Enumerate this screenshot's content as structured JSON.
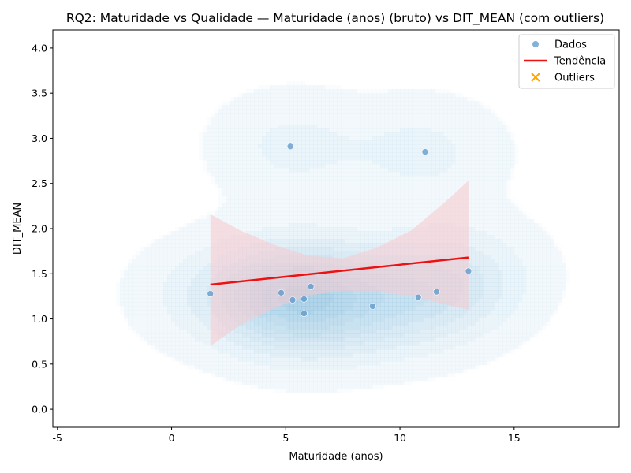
{
  "chart_data": {
    "type": "scatter",
    "title": "RQ2: Maturidade vs Qualidade — Maturidade (anos) (bruto) vs DIT_MEAN (com outliers)",
    "xlabel": "Maturidade (anos)",
    "ylabel": "DIT_MEAN",
    "xlim": [
      -5.2,
      19.6
    ],
    "ylim": [
      -0.2,
      4.2
    ],
    "xticks": [
      -5,
      0,
      5,
      10,
      15
    ],
    "yticks": [
      0.0,
      0.5,
      1.0,
      1.5,
      2.0,
      2.5,
      3.0,
      3.5,
      4.0
    ],
    "grid": false,
    "legend_position": "top-right",
    "legend": [
      {
        "label": "Dados",
        "marker": "dot",
        "color": "#5b97c9"
      },
      {
        "label": "Tendência",
        "marker": "line",
        "color": "#ee1111"
      },
      {
        "label": "Outliers",
        "marker": "x",
        "color": "#ffa500"
      }
    ],
    "points": [
      {
        "x": 1.7,
        "y": 1.28
      },
      {
        "x": 4.8,
        "y": 1.29
      },
      {
        "x": 5.3,
        "y": 1.21
      },
      {
        "x": 5.8,
        "y": 1.22
      },
      {
        "x": 5.8,
        "y": 1.06
      },
      {
        "x": 6.1,
        "y": 1.36
      },
      {
        "x": 8.8,
        "y": 1.14
      },
      {
        "x": 10.8,
        "y": 1.24
      },
      {
        "x": 11.6,
        "y": 1.3
      },
      {
        "x": 13.0,
        "y": 1.53
      },
      {
        "x": 5.2,
        "y": 2.91
      },
      {
        "x": 11.1,
        "y": 2.85
      }
    ],
    "outliers": [],
    "trend": {
      "x": [
        1.7,
        13.0
      ],
      "y": [
        1.38,
        1.68
      ]
    },
    "confidence_band": {
      "x": [
        1.7,
        3.0,
        4.5,
        6.0,
        7.5,
        9.0,
        10.5,
        12.0,
        13.0
      ],
      "upper": [
        2.16,
        1.98,
        1.82,
        1.7,
        1.67,
        1.79,
        1.98,
        2.3,
        2.53
      ],
      "lower": [
        0.7,
        0.93,
        1.12,
        1.26,
        1.31,
        1.3,
        1.25,
        1.16,
        1.1
      ]
    },
    "colors": {
      "points": "#5b97c9",
      "trend": "#ee1111",
      "band": "#f7c9cd",
      "density": "#6aaed6",
      "outliers": "#ffa500"
    }
  }
}
